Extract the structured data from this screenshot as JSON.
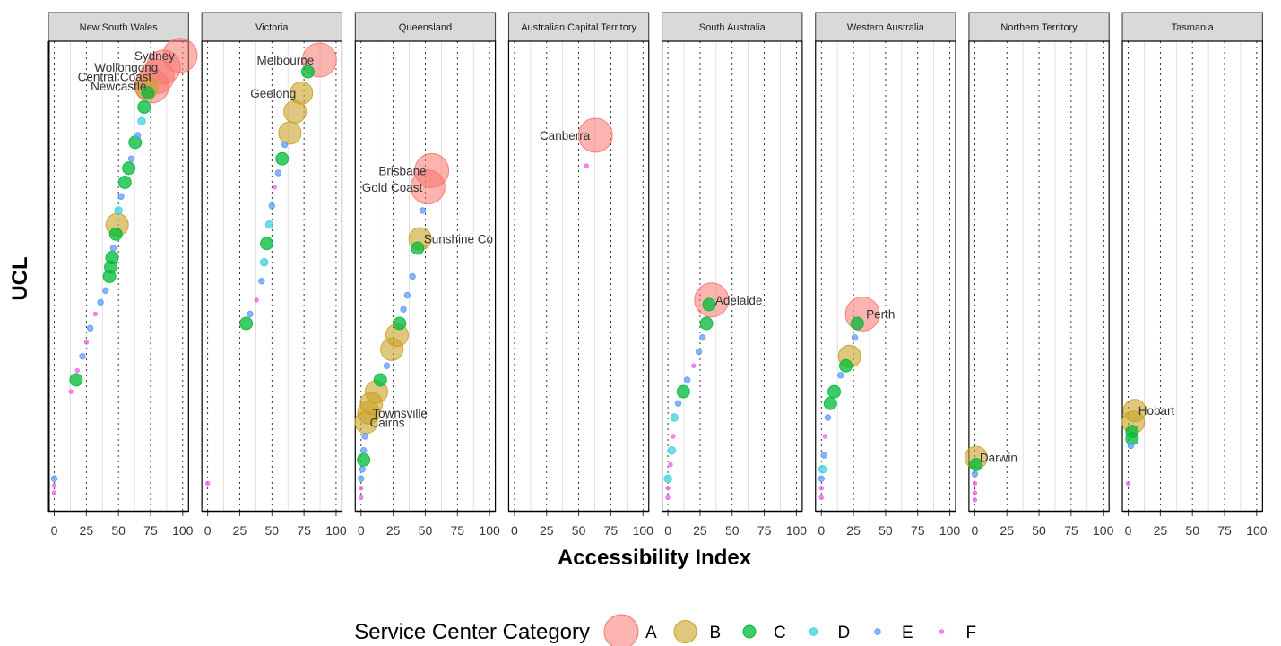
{
  "chart_data": {
    "type": "scatter",
    "facet_by": "State",
    "xlabel": "Accessibility Index",
    "ylabel": "UCL",
    "xlim": [
      0,
      100
    ],
    "x_ticks": [
      "0",
      "25",
      "50",
      "75",
      "100"
    ],
    "y_ticks": "none",
    "grid": "dotted major vertical lines, light minor vertical lines",
    "legend": {
      "title": "Service Center Category",
      "position": "bottom",
      "categories": [
        "A",
        "B",
        "C",
        "D",
        "E",
        "F"
      ]
    },
    "colors": {
      "A": "#F8766D",
      "B": "#C9A227",
      "C": "#00BA38",
      "D": "#3FD1DC",
      "E": "#619CFF",
      "F": "#F564E3"
    },
    "panels": [
      {
        "name": "New South Wales",
        "labels": [
          "Sydney",
          "Wollongong",
          "Central Coast",
          "Newcastle"
        ],
        "points": [
          {
            "x": 98,
            "rank": 0.03,
            "cat": "A",
            "label": "Sydney"
          },
          {
            "x": 85,
            "rank": 0.055,
            "cat": "A",
            "label": "Wollongong"
          },
          {
            "x": 80,
            "rank": 0.075,
            "cat": "A",
            "label": "Central Coast"
          },
          {
            "x": 76,
            "rank": 0.095,
            "cat": "A",
            "label": "Newcastle"
          },
          {
            "x": 72,
            "rank": 0.1,
            "cat": "B"
          },
          {
            "x": 73,
            "rank": 0.11,
            "cat": "C"
          },
          {
            "x": 70,
            "rank": 0.14,
            "cat": "C"
          },
          {
            "x": 68,
            "rank": 0.17,
            "cat": "D"
          },
          {
            "x": 65,
            "rank": 0.2,
            "cat": "E"
          },
          {
            "x": 63,
            "rank": 0.215,
            "cat": "C"
          },
          {
            "x": 60,
            "rank": 0.25,
            "cat": "E"
          },
          {
            "x": 58,
            "rank": 0.27,
            "cat": "C"
          },
          {
            "x": 55,
            "rank": 0.3,
            "cat": "C"
          },
          {
            "x": 52,
            "rank": 0.33,
            "cat": "E"
          },
          {
            "x": 50,
            "rank": 0.36,
            "cat": "D"
          },
          {
            "x": 49,
            "rank": 0.39,
            "cat": "B"
          },
          {
            "x": 48,
            "rank": 0.41,
            "cat": "C"
          },
          {
            "x": 46,
            "rank": 0.44,
            "cat": "E"
          },
          {
            "x": 45,
            "rank": 0.46,
            "cat": "C"
          },
          {
            "x": 44,
            "rank": 0.48,
            "cat": "C"
          },
          {
            "x": 43,
            "rank": 0.5,
            "cat": "C"
          },
          {
            "x": 40,
            "rank": 0.53,
            "cat": "E"
          },
          {
            "x": 36,
            "rank": 0.555,
            "cat": "E"
          },
          {
            "x": 32,
            "rank": 0.58,
            "cat": "F"
          },
          {
            "x": 28,
            "rank": 0.61,
            "cat": "E"
          },
          {
            "x": 25,
            "rank": 0.64,
            "cat": "F"
          },
          {
            "x": 22,
            "rank": 0.67,
            "cat": "E"
          },
          {
            "x": 18,
            "rank": 0.7,
            "cat": "F"
          },
          {
            "x": 17,
            "rank": 0.72,
            "cat": "C"
          },
          {
            "x": 13,
            "rank": 0.745,
            "cat": "F"
          },
          {
            "x": 0,
            "rank": 0.93,
            "cat": "E"
          },
          {
            "x": 0,
            "rank": 0.945,
            "cat": "F"
          },
          {
            "x": 0,
            "rank": 0.96,
            "cat": "F"
          }
        ]
      },
      {
        "name": "Victoria",
        "labels": [
          "Melbourne",
          "Geelong"
        ],
        "points": [
          {
            "x": 87,
            "rank": 0.04,
            "cat": "A",
            "label": "Melbourne"
          },
          {
            "x": 78,
            "rank": 0.065,
            "cat": "C"
          },
          {
            "x": 73,
            "rank": 0.11,
            "cat": "B",
            "label": "Geelong"
          },
          {
            "x": 68,
            "rank": 0.15,
            "cat": "B"
          },
          {
            "x": 64,
            "rank": 0.195,
            "cat": "B"
          },
          {
            "x": 60,
            "rank": 0.22,
            "cat": "E"
          },
          {
            "x": 58,
            "rank": 0.25,
            "cat": "C"
          },
          {
            "x": 55,
            "rank": 0.28,
            "cat": "E"
          },
          {
            "x": 52,
            "rank": 0.31,
            "cat": "F"
          },
          {
            "x": 50,
            "rank": 0.35,
            "cat": "E"
          },
          {
            "x": 48,
            "rank": 0.39,
            "cat": "D"
          },
          {
            "x": 46,
            "rank": 0.43,
            "cat": "C"
          },
          {
            "x": 44,
            "rank": 0.47,
            "cat": "D"
          },
          {
            "x": 42,
            "rank": 0.51,
            "cat": "E"
          },
          {
            "x": 38,
            "rank": 0.55,
            "cat": "F"
          },
          {
            "x": 33,
            "rank": 0.58,
            "cat": "E"
          },
          {
            "x": 30,
            "rank": 0.6,
            "cat": "C"
          },
          {
            "x": 0,
            "rank": 0.94,
            "cat": "F"
          }
        ]
      },
      {
        "name": "Queensland",
        "labels": [
          "Brisbane",
          "Gold Coast",
          "Sunshine Co",
          "Townsville",
          "Cairns"
        ],
        "points": [
          {
            "x": 55,
            "rank": 0.275,
            "cat": "A",
            "label": "Brisbane"
          },
          {
            "x": 52,
            "rank": 0.31,
            "cat": "A",
            "label": "Gold Coast"
          },
          {
            "x": 48,
            "rank": 0.36,
            "cat": "E"
          },
          {
            "x": 46,
            "rank": 0.42,
            "cat": "B",
            "label": "Sunshine Co"
          },
          {
            "x": 44,
            "rank": 0.44,
            "cat": "C"
          },
          {
            "x": 40,
            "rank": 0.5,
            "cat": "E"
          },
          {
            "x": 36,
            "rank": 0.54,
            "cat": "E"
          },
          {
            "x": 33,
            "rank": 0.57,
            "cat": "E"
          },
          {
            "x": 30,
            "rank": 0.6,
            "cat": "C"
          },
          {
            "x": 28,
            "rank": 0.625,
            "cat": "B"
          },
          {
            "x": 24,
            "rank": 0.655,
            "cat": "B"
          },
          {
            "x": 20,
            "rank": 0.69,
            "cat": "E"
          },
          {
            "x": 15,
            "rank": 0.72,
            "cat": "C"
          },
          {
            "x": 12,
            "rank": 0.745,
            "cat": "B"
          },
          {
            "x": 8,
            "rank": 0.77,
            "cat": "B"
          },
          {
            "x": 6,
            "rank": 0.79,
            "cat": "B",
            "label": "Townsville"
          },
          {
            "x": 4,
            "rank": 0.81,
            "cat": "B",
            "label": "Cairns"
          },
          {
            "x": 3,
            "rank": 0.84,
            "cat": "E"
          },
          {
            "x": 2,
            "rank": 0.87,
            "cat": "E"
          },
          {
            "x": 2,
            "rank": 0.89,
            "cat": "C"
          },
          {
            "x": 1,
            "rank": 0.91,
            "cat": "E"
          },
          {
            "x": 0,
            "rank": 0.93,
            "cat": "E"
          },
          {
            "x": 0,
            "rank": 0.95,
            "cat": "F"
          },
          {
            "x": 0,
            "rank": 0.97,
            "cat": "F"
          }
        ]
      },
      {
        "name": "Australian Capital Territory",
        "labels": [
          "Canberra"
        ],
        "points": [
          {
            "x": 63,
            "rank": 0.2,
            "cat": "A",
            "label": "Canberra"
          },
          {
            "x": 56,
            "rank": 0.265,
            "cat": "F"
          }
        ]
      },
      {
        "name": "South Australia",
        "labels": [
          "Adelaide"
        ],
        "points": [
          {
            "x": 34,
            "rank": 0.55,
            "cat": "A",
            "label": "Adelaide"
          },
          {
            "x": 32,
            "rank": 0.56,
            "cat": "C"
          },
          {
            "x": 30,
            "rank": 0.6,
            "cat": "C"
          },
          {
            "x": 27,
            "rank": 0.63,
            "cat": "E"
          },
          {
            "x": 24,
            "rank": 0.66,
            "cat": "E"
          },
          {
            "x": 20,
            "rank": 0.69,
            "cat": "F"
          },
          {
            "x": 15,
            "rank": 0.72,
            "cat": "E"
          },
          {
            "x": 12,
            "rank": 0.745,
            "cat": "C"
          },
          {
            "x": 8,
            "rank": 0.77,
            "cat": "E"
          },
          {
            "x": 5,
            "rank": 0.8,
            "cat": "D"
          },
          {
            "x": 4,
            "rank": 0.84,
            "cat": "F"
          },
          {
            "x": 3,
            "rank": 0.87,
            "cat": "D"
          },
          {
            "x": 2,
            "rank": 0.9,
            "cat": "F"
          },
          {
            "x": 0,
            "rank": 0.93,
            "cat": "D"
          },
          {
            "x": 0,
            "rank": 0.95,
            "cat": "F"
          },
          {
            "x": 0,
            "rank": 0.97,
            "cat": "F"
          }
        ]
      },
      {
        "name": "Western Australia",
        "labels": [
          "Perth"
        ],
        "points": [
          {
            "x": 32,
            "rank": 0.58,
            "cat": "A",
            "label": "Perth"
          },
          {
            "x": 28,
            "rank": 0.6,
            "cat": "C"
          },
          {
            "x": 26,
            "rank": 0.63,
            "cat": "E"
          },
          {
            "x": 22,
            "rank": 0.67,
            "cat": "B"
          },
          {
            "x": 19,
            "rank": 0.69,
            "cat": "C"
          },
          {
            "x": 15,
            "rank": 0.71,
            "cat": "E"
          },
          {
            "x": 10,
            "rank": 0.745,
            "cat": "C"
          },
          {
            "x": 7,
            "rank": 0.77,
            "cat": "C"
          },
          {
            "x": 5,
            "rank": 0.8,
            "cat": "E"
          },
          {
            "x": 3,
            "rank": 0.84,
            "cat": "F"
          },
          {
            "x": 2,
            "rank": 0.88,
            "cat": "E"
          },
          {
            "x": 1,
            "rank": 0.91,
            "cat": "D"
          },
          {
            "x": 0,
            "rank": 0.93,
            "cat": "E"
          },
          {
            "x": 0,
            "rank": 0.95,
            "cat": "F"
          },
          {
            "x": 0,
            "rank": 0.97,
            "cat": "F"
          }
        ]
      },
      {
        "name": "Northern Territory",
        "labels": [
          "Darwin"
        ],
        "points": [
          {
            "x": 1,
            "rank": 0.885,
            "cat": "B",
            "label": "Darwin"
          },
          {
            "x": 1,
            "rank": 0.9,
            "cat": "C"
          },
          {
            "x": 0,
            "rank": 0.92,
            "cat": "E"
          },
          {
            "x": 0,
            "rank": 0.94,
            "cat": "F"
          },
          {
            "x": 0,
            "rank": 0.96,
            "cat": "F"
          },
          {
            "x": 0,
            "rank": 0.975,
            "cat": "F"
          }
        ]
      },
      {
        "name": "Tasmania",
        "labels": [
          "Hobart"
        ],
        "points": [
          {
            "x": 5,
            "rank": 0.785,
            "cat": "B",
            "label": "Hobart"
          },
          {
            "x": 4,
            "rank": 0.81,
            "cat": "B"
          },
          {
            "x": 3,
            "rank": 0.83,
            "cat": "C"
          },
          {
            "x": 3,
            "rank": 0.845,
            "cat": "C"
          },
          {
            "x": 2,
            "rank": 0.86,
            "cat": "E"
          },
          {
            "x": 0,
            "rank": 0.94,
            "cat": "F"
          }
        ]
      }
    ]
  }
}
